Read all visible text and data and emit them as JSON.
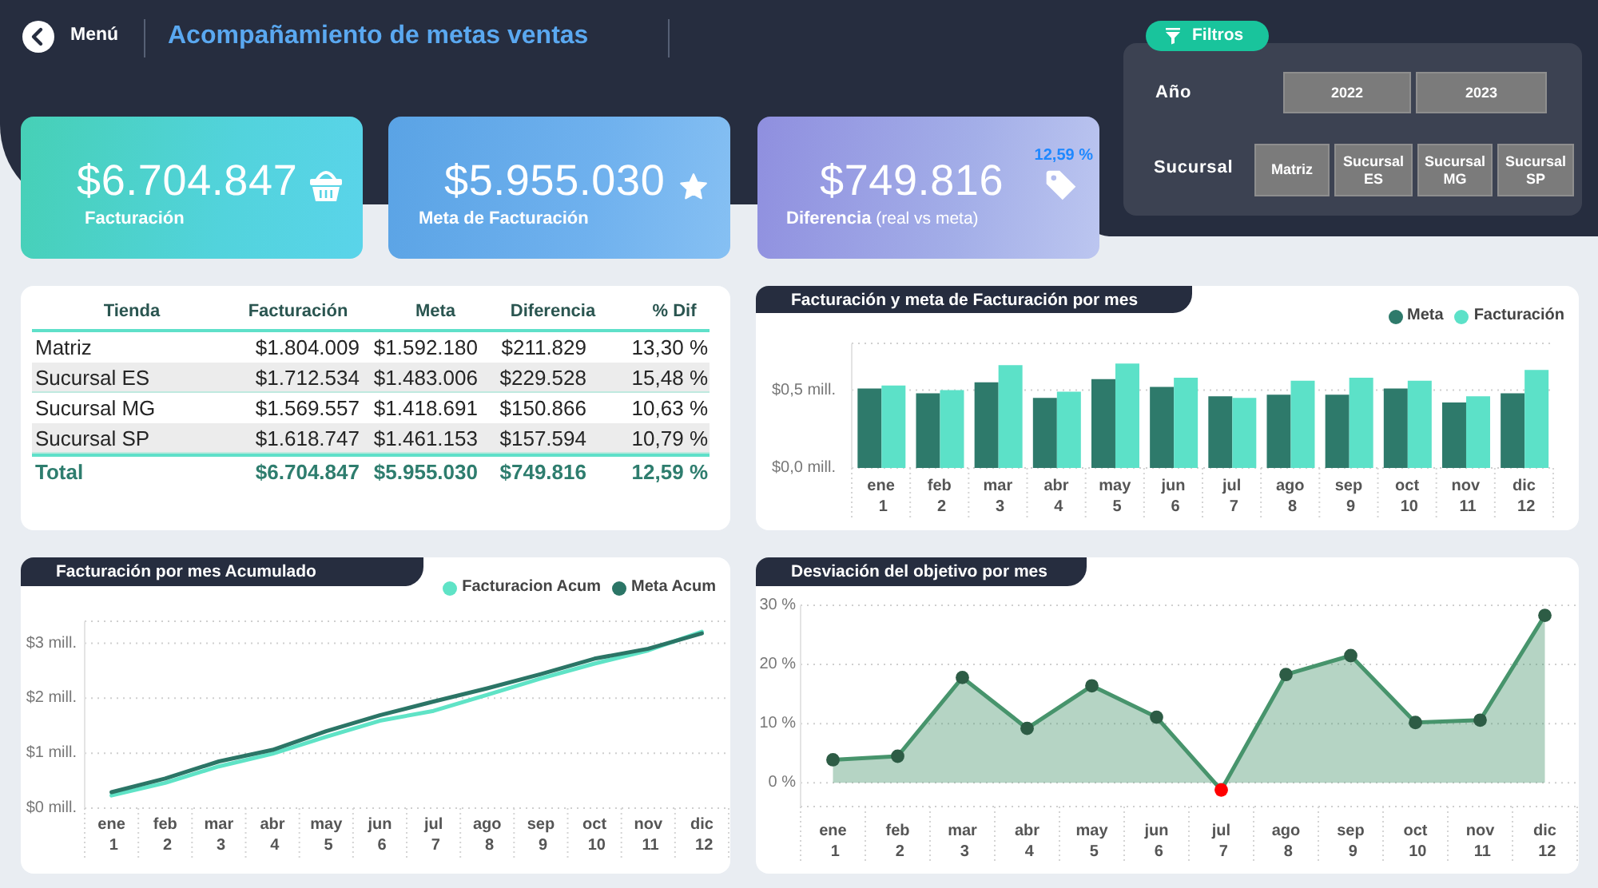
{
  "chart_data": [
    {
      "type": "other",
      "title": "Acompañamiento de metas ventas",
      "annotations": [
        "Menú"
      ]
    },
    {
      "type": "other",
      "annotations": [
        "$6.704.847",
        "Facturación",
        "$5.955.030",
        "Meta de Facturación",
        "$749.816",
        "Diferencia (real vs meta)",
        "12,59 %"
      ]
    },
    {
      "type": "other",
      "title": "Filtros",
      "annotations": [
        "Año",
        "2022",
        "2023",
        "Sucursal",
        "Matriz",
        "Sucursal ES",
        "Sucursal MG",
        "Sucursal SP"
      ]
    },
    {
      "type": "other",
      "categories": [
        "Tienda",
        "Facturación",
        "Meta",
        "Diferencia",
        "% Dif"
      ],
      "cell_labels": [
        [
          "Matriz",
          "$1.804.009",
          "$1.592.180",
          "$211.829",
          "13,30 %"
        ],
        [
          "Sucursal ES",
          "$1.712.534",
          "$1.483.006",
          "$229.528",
          "15,48 %"
        ],
        [
          "Sucursal MG",
          "$1.569.557",
          "$1.418.691",
          "$150.866",
          "10,63 %"
        ],
        [
          "Sucursal SP",
          "$1.618.747",
          "$1.461.153",
          "$157.594",
          "10,79 %"
        ],
        [
          "Total",
          "$6.704.847",
          "$5.955.030",
          "$749.816",
          "12,59 %"
        ]
      ]
    },
    {
      "type": "bar",
      "title": "Facturación y meta de Facturación por mes",
      "categories": [
        "ene 1",
        "feb 2",
        "mar 3",
        "abr 4",
        "may 5",
        "jun 6",
        "jul 7",
        "ago 8",
        "sep 9",
        "oct 10",
        "nov 11",
        "dic 12"
      ],
      "series": [
        {
          "name": "Meta",
          "color": "#2e7a6b",
          "values": [
            0.51,
            0.48,
            0.55,
            0.45,
            0.57,
            0.52,
            0.46,
            0.47,
            0.47,
            0.51,
            0.42,
            0.48
          ]
        },
        {
          "name": "Facturación",
          "color": "#5ce1c8",
          "values": [
            0.53,
            0.5,
            0.66,
            0.49,
            0.67,
            0.58,
            0.45,
            0.56,
            0.58,
            0.56,
            0.46,
            0.63
          ]
        }
      ],
      "ylim": [
        0,
        0.8
      ],
      "yticks": [
        {
          "value": 0,
          "label": "$0,0 mill."
        },
        {
          "value": 0.5,
          "label": "$0,5 mill."
        }
      ],
      "grid": "y",
      "legend": "top right"
    },
    {
      "type": "line",
      "title": "Facturación por mes Acumulado",
      "categories": [
        "ene 1",
        "feb 2",
        "mar 3",
        "abr 4",
        "may 5",
        "jun 6",
        "jul 7",
        "ago 8",
        "sep 9",
        "oct 10",
        "nov 11",
        "dic 12"
      ],
      "series": [
        {
          "name": "Facturacion Acum",
          "color": "#5fe3c6",
          "values": [
            0.23,
            0.46,
            0.76,
            0.99,
            1.3,
            1.59,
            1.77,
            2.06,
            2.36,
            2.63,
            2.87,
            3.21
          ]
        },
        {
          "name": "Meta Acum",
          "color": "#2b7566",
          "values": [
            0.29,
            0.54,
            0.85,
            1.06,
            1.4,
            1.69,
            1.94,
            2.18,
            2.44,
            2.72,
            2.9,
            3.18
          ]
        }
      ],
      "ylim": [
        0,
        3.4
      ],
      "yticks": [
        {
          "value": 0,
          "label": "$0 mill."
        },
        {
          "value": 1,
          "label": "$1 mill."
        },
        {
          "value": 2,
          "label": "$2 mill."
        },
        {
          "value": 3,
          "label": "$3 mill."
        }
      ],
      "grid": "y",
      "legend": "top right"
    },
    {
      "type": "area",
      "title": "Desviación del objetivo por mes",
      "categories": [
        "ene 1",
        "feb 2",
        "mar 3",
        "abr 4",
        "may 5",
        "jun 6",
        "jul 7",
        "ago 8",
        "sep 9",
        "oct 10",
        "nov 11",
        "dic 12"
      ],
      "series": [
        {
          "color": "#47946c",
          "colors": [
            "#2d5c45",
            "#2d5c45",
            "#2d5c45",
            "#2d5c45",
            "#2d5c45",
            "#2d5c45",
            "#ff0000",
            "#2d5c45",
            "#2d5c45",
            "#2d5c45",
            "#2d5c45",
            "#2d5c45"
          ],
          "values": [
            3.9,
            4.5,
            17.8,
            9.2,
            16.4,
            11.1,
            -1.2,
            18.3,
            21.5,
            10.2,
            10.6,
            28.3
          ]
        }
      ],
      "ylim": [
        -4,
        30
      ],
      "yticks": [
        {
          "value": 0,
          "label": "0 %"
        },
        {
          "value": 10,
          "label": "10 %"
        },
        {
          "value": 20,
          "label": "20 %"
        },
        {
          "value": 30,
          "label": "30 %"
        }
      ],
      "grid": "y",
      "marker": "circle"
    }
  ]
}
